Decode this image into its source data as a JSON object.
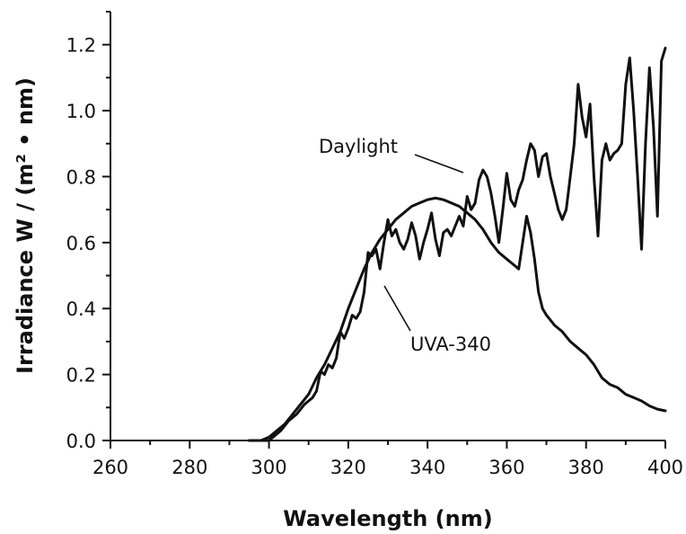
{
  "chart_data": {
    "type": "line",
    "title": "",
    "xlabel": "Wavelength (nm)",
    "ylabel": "Irradiance W / (m² • nm)",
    "xlim": [
      260,
      400
    ],
    "ylim": [
      0,
      1.3
    ],
    "xticks": [
      260,
      280,
      300,
      320,
      340,
      360,
      380,
      400
    ],
    "xtick_labels": [
      "260",
      "280",
      "300",
      "320",
      "340",
      "360",
      "380",
      "400"
    ],
    "yticks": [
      0.0,
      0.2,
      0.4,
      0.6,
      0.8,
      1.0,
      1.2
    ],
    "ytick_labels": [
      "0.0",
      "0.2",
      "0.4",
      "0.6",
      "0.8",
      "1.0",
      "1.2"
    ],
    "grid": false,
    "legend": "none",
    "annotations": [
      "Daylight",
      "UVA-340"
    ],
    "series": [
      {
        "name": "Daylight",
        "x": [
          295,
          300,
          303,
          305,
          307,
          309,
          311,
          312,
          313,
          314,
          315,
          316,
          317,
          318,
          319,
          320,
          321,
          322,
          323,
          324,
          325,
          326,
          327,
          328,
          329,
          330,
          331,
          332,
          333,
          334,
          335,
          336,
          337,
          338,
          339,
          340,
          341,
          342,
          343,
          344,
          345,
          346,
          347,
          348,
          349,
          350,
          351,
          352,
          353,
          354,
          355,
          356,
          357,
          358,
          359,
          360,
          361,
          362,
          363,
          364,
          365,
          366,
          367,
          368,
          369,
          370,
          371,
          372,
          373,
          374,
          375,
          376,
          377,
          378,
          379,
          380,
          381,
          382,
          383,
          384,
          385,
          386,
          387,
          388,
          389,
          390,
          391,
          392,
          393,
          394,
          395,
          396,
          397,
          398,
          399,
          400
        ],
        "values": [
          0.0,
          0.0,
          0.03,
          0.06,
          0.08,
          0.11,
          0.13,
          0.15,
          0.21,
          0.2,
          0.23,
          0.22,
          0.25,
          0.33,
          0.31,
          0.34,
          0.38,
          0.37,
          0.39,
          0.45,
          0.57,
          0.56,
          0.58,
          0.52,
          0.6,
          0.67,
          0.62,
          0.64,
          0.6,
          0.58,
          0.61,
          0.66,
          0.62,
          0.55,
          0.6,
          0.64,
          0.69,
          0.61,
          0.56,
          0.63,
          0.64,
          0.62,
          0.65,
          0.68,
          0.65,
          0.74,
          0.7,
          0.72,
          0.79,
          0.82,
          0.8,
          0.75,
          0.68,
          0.6,
          0.7,
          0.81,
          0.73,
          0.71,
          0.76,
          0.79,
          0.85,
          0.9,
          0.88,
          0.8,
          0.86,
          0.87,
          0.8,
          0.75,
          0.7,
          0.67,
          0.7,
          0.8,
          0.9,
          1.08,
          0.98,
          0.92,
          1.02,
          0.8,
          0.62,
          0.85,
          0.9,
          0.85,
          0.87,
          0.88,
          0.9,
          1.08,
          1.16,
          1.0,
          0.8,
          0.58,
          0.9,
          1.13,
          0.95,
          0.68,
          1.15,
          1.19
        ]
      },
      {
        "name": "UVA-340",
        "x": [
          295,
          298,
          300,
          302,
          304,
          306,
          308,
          310,
          312,
          314,
          316,
          318,
          320,
          322,
          324,
          326,
          328,
          330,
          332,
          334,
          336,
          338,
          340,
          342,
          344,
          346,
          348,
          350,
          352,
          354,
          356,
          358,
          360,
          362,
          363,
          364,
          365,
          366,
          367,
          368,
          369,
          370,
          372,
          374,
          376,
          378,
          380,
          382,
          384,
          386,
          388,
          390,
          392,
          394,
          396,
          398,
          400
        ],
        "values": [
          0.0,
          0.0,
          0.01,
          0.03,
          0.05,
          0.08,
          0.11,
          0.14,
          0.19,
          0.23,
          0.28,
          0.33,
          0.4,
          0.46,
          0.52,
          0.57,
          0.61,
          0.64,
          0.67,
          0.69,
          0.71,
          0.72,
          0.73,
          0.735,
          0.73,
          0.72,
          0.71,
          0.69,
          0.67,
          0.64,
          0.6,
          0.57,
          0.55,
          0.53,
          0.52,
          0.6,
          0.68,
          0.63,
          0.55,
          0.45,
          0.4,
          0.38,
          0.35,
          0.33,
          0.3,
          0.28,
          0.26,
          0.23,
          0.19,
          0.17,
          0.16,
          0.14,
          0.13,
          0.12,
          0.105,
          0.095,
          0.09
        ]
      }
    ]
  }
}
